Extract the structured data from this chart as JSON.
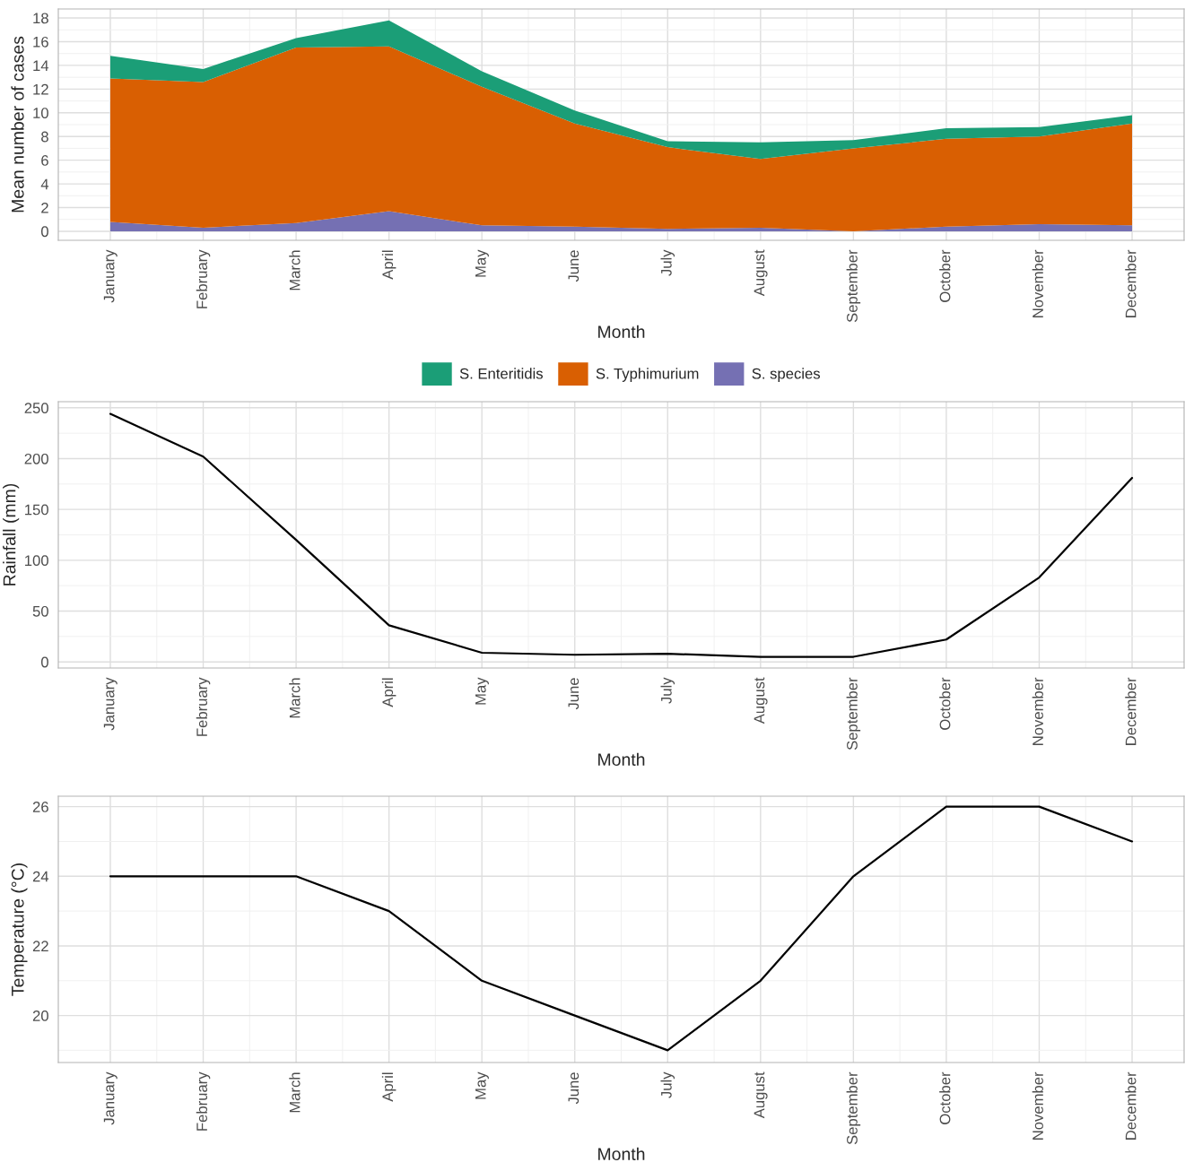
{
  "chart_data": [
    {
      "type": "area",
      "stacked": true,
      "ylabel": "Mean number of cases",
      "xlabel": "Month",
      "legend": "bottom",
      "grid": true,
      "categories": [
        "January",
        "February",
        "March",
        "April",
        "May",
        "June",
        "July",
        "August",
        "September",
        "October",
        "November",
        "December"
      ],
      "ylim": [
        -0.76,
        18.76
      ],
      "yticks": [
        0,
        2,
        4,
        6,
        8,
        10,
        12,
        14,
        16,
        18
      ],
      "series": [
        {
          "name": "S. species",
          "color": "#7570b3",
          "values": [
            0.8,
            0.3,
            0.7,
            1.7,
            0.5,
            0.4,
            0.2,
            0.3,
            0.0,
            0.4,
            0.6,
            0.5
          ]
        },
        {
          "name": "S. Typhimurium",
          "color": "#d95f02",
          "values": [
            12.1,
            12.3,
            14.8,
            13.9,
            11.7,
            8.7,
            6.9,
            5.8,
            7.0,
            7.4,
            7.4,
            8.6
          ]
        },
        {
          "name": "S. Enteritidis",
          "color": "#1b9e77",
          "values": [
            1.9,
            1.1,
            0.8,
            2.2,
            1.3,
            1.1,
            0.5,
            1.4,
            0.7,
            0.9,
            0.8,
            0.7
          ]
        }
      ]
    },
    {
      "type": "line",
      "ylabel": "Rainfall (mm)",
      "xlabel": "Month",
      "grid": true,
      "categories": [
        "January",
        "February",
        "March",
        "April",
        "May",
        "June",
        "July",
        "August",
        "September",
        "October",
        "November",
        "December"
      ],
      "ylim": [
        -6,
        256
      ],
      "yticks": [
        0,
        50,
        100,
        150,
        200,
        250
      ],
      "series": [
        {
          "color": "#000000",
          "values": [
            244,
            202,
            120,
            36,
            9,
            7,
            8,
            5,
            5,
            22,
            83,
            181
          ]
        }
      ]
    },
    {
      "type": "line",
      "ylabel": "Temperature (°C)",
      "xlabel": "Month",
      "grid": true,
      "categories": [
        "January",
        "February",
        "March",
        "April",
        "May",
        "June",
        "July",
        "August",
        "September",
        "October",
        "November",
        "December"
      ],
      "ylim": [
        18.65,
        26.3
      ],
      "yticks": [
        20,
        22,
        24,
        26
      ],
      "series": [
        {
          "color": "#000000",
          "values": [
            24,
            24,
            24,
            23,
            21,
            20,
            19,
            21,
            24,
            26,
            26,
            25
          ]
        }
      ]
    }
  ]
}
